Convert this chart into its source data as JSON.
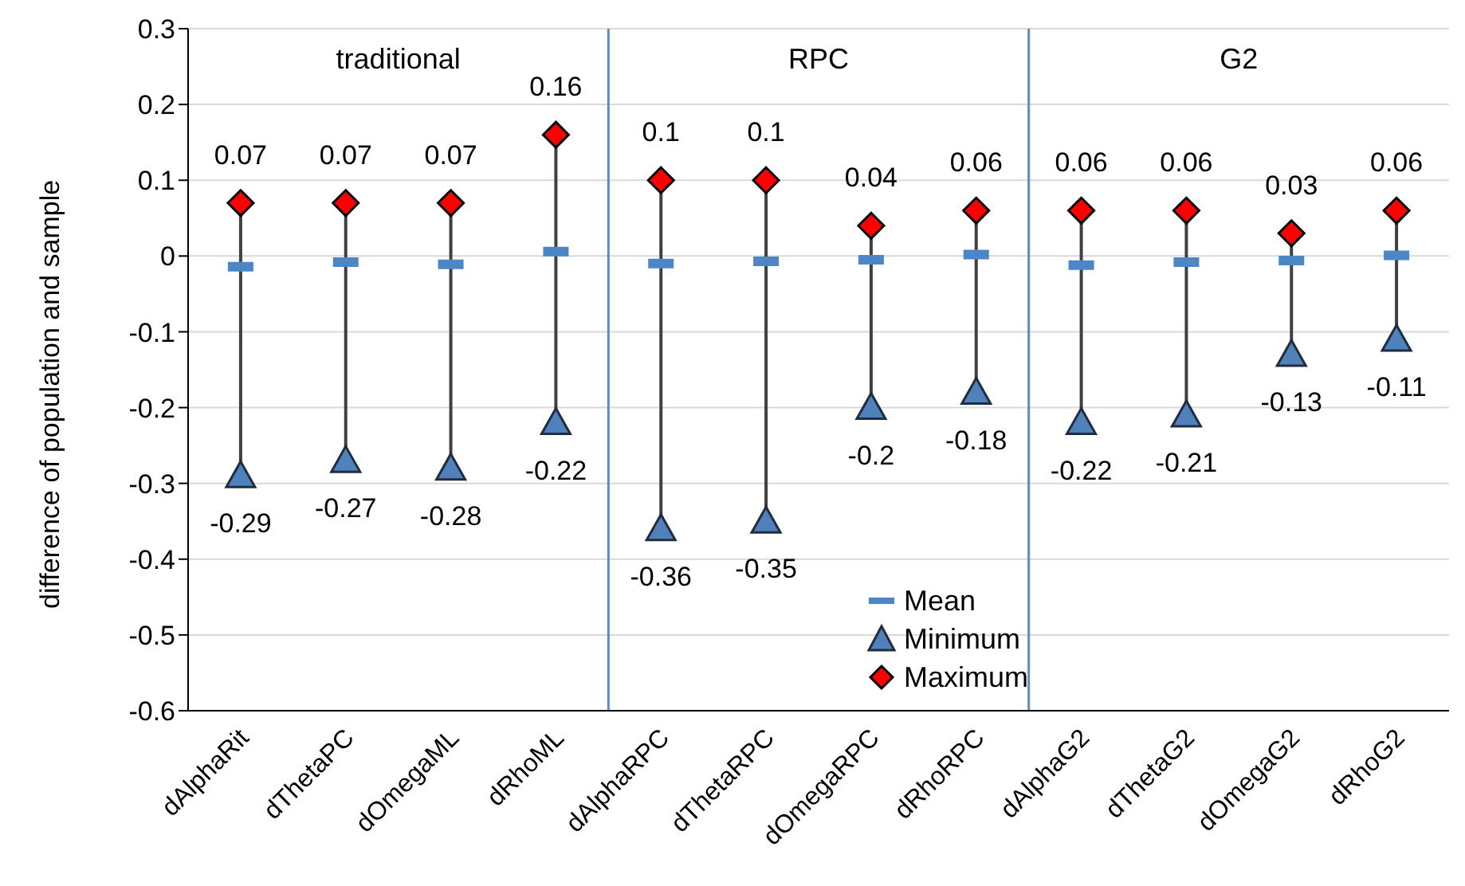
{
  "chart_data": {
    "type": "scatter",
    "ylabel": "difference of population and sample",
    "categories": [
      "dAlphaRit",
      "dThetaPC",
      "dOmegaML",
      "dRhoML",
      "dAlphaRPC",
      "dThetaRPC",
      "dOmegaRPC",
      "dRhoRPC",
      "dAlphaG2",
      "dThetaG2",
      "dOmegaG2",
      "dRhoG2"
    ],
    "series": [
      {
        "name": "Mean",
        "color": "#4a86c8",
        "values": [
          -0.014,
          -0.008,
          -0.011,
          0.006,
          -0.01,
          -0.007,
          -0.005,
          0.002,
          -0.012,
          -0.008,
          -0.006,
          0.001
        ]
      },
      {
        "name": "Minimum",
        "color": "#4f81bd",
        "marker": "triangle",
        "values": [
          -0.29,
          -0.27,
          -0.28,
          -0.22,
          -0.36,
          -0.35,
          -0.2,
          -0.18,
          -0.22,
          -0.21,
          -0.13,
          -0.11
        ],
        "value_labels": [
          "-0.29",
          "-0.27",
          "-0.28",
          "-0.22",
          "-0.36",
          "-0.35",
          "-0.2",
          "-0.18",
          "-0.22",
          "-0.21",
          "-0.13",
          "-0.11"
        ]
      },
      {
        "name": "Maximum",
        "color": "#ff0000",
        "marker": "diamond",
        "values": [
          0.07,
          0.07,
          0.07,
          0.16,
          0.1,
          0.1,
          0.04,
          0.06,
          0.06,
          0.06,
          0.03,
          0.06
        ],
        "value_labels": [
          "0.07",
          "0.07",
          "0.07",
          "0.16",
          "0.1",
          "0.1",
          "0.04",
          "0.06",
          "0.06",
          "0.06",
          "0.03",
          "0.06"
        ]
      }
    ],
    "annotations": [
      "traditional",
      "RPC",
      "G2"
    ],
    "ref_lines": [
      {
        "axis": "x",
        "value": "dAlphaRPC",
        "color": "#5b8cc8"
      },
      {
        "axis": "x",
        "value": "dAlphaG2",
        "color": "#5b8cc8"
      }
    ],
    "ylim": [
      -0.6,
      0.3
    ],
    "yticks": [
      -0.6,
      -0.5,
      -0.4,
      -0.3,
      -0.2,
      -0.1,
      0,
      0.1,
      0.2,
      0.3
    ],
    "grid": "y",
    "legend": "bottom"
  }
}
